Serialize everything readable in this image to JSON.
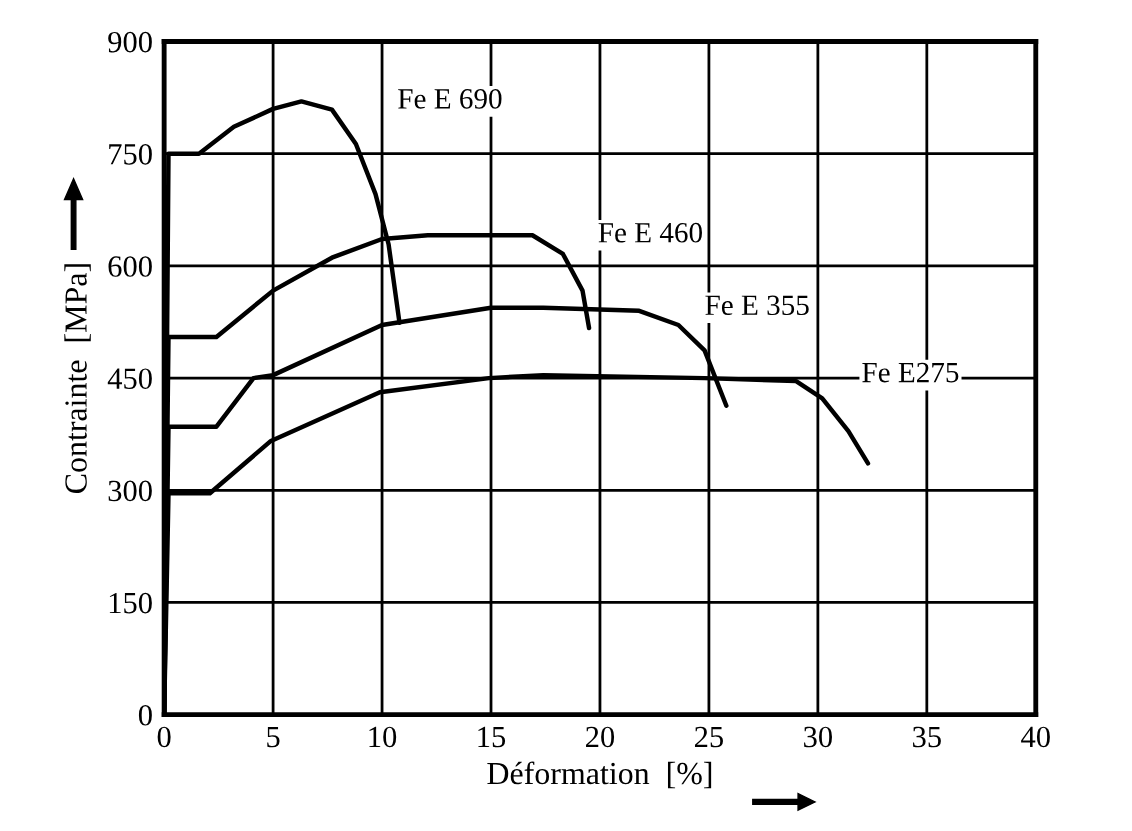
{
  "chart_data": {
    "type": "line",
    "xlabel": "Déformation  [%]",
    "ylabel": "Contrainte  [MPa]",
    "xlim": [
      0,
      40
    ],
    "ylim": [
      0,
      900
    ],
    "xticks": [
      0,
      5,
      10,
      15,
      20,
      25,
      30,
      35,
      40
    ],
    "yticks": [
      0,
      150,
      300,
      450,
      600,
      750,
      900
    ],
    "grid": true,
    "legend": false,
    "marker": "none",
    "line_style": "solid",
    "series": [
      {
        "name": "Fe E 690",
        "color": "#000000",
        "x": [
          0,
          0.2,
          1.6,
          3.2,
          5.0,
          6.3,
          7.7,
          8.8,
          9.7,
          10.3,
          10.8
        ],
        "values": [
          0,
          750,
          750,
          786,
          810,
          820,
          809,
          763,
          696,
          629,
          524
        ]
      },
      {
        "name": "Fe E 460",
        "color": "#000000",
        "x": [
          0,
          0.2,
          2.4,
          5.0,
          7.7,
          10.0,
          12.1,
          16.9,
          18.3,
          19.2,
          19.5
        ],
        "values": [
          0,
          505,
          505,
          567,
          611,
          636,
          641,
          641,
          616,
          567,
          517
        ]
      },
      {
        "name": "Fe E 355",
        "color": "#000000",
        "x": [
          0,
          0.2,
          2.4,
          4.1,
          5.0,
          10.0,
          15.0,
          17.4,
          21.8,
          23.6,
          24.8,
          25.8
        ],
        "values": [
          0,
          385,
          385,
          450,
          454,
          521,
          544,
          544,
          540,
          521,
          487,
          413
        ]
      },
      {
        "name": "Fe E275",
        "color": "#000000",
        "x": [
          0,
          0.2,
          2.1,
          4.9,
          9.9,
          14.9,
          17.4,
          24.8,
          29.0,
          30.2,
          31.4,
          32.3
        ],
        "values": [
          0,
          296,
          296,
          366,
          431,
          450,
          454,
          450,
          446,
          423,
          379,
          336
        ]
      }
    ]
  }
}
